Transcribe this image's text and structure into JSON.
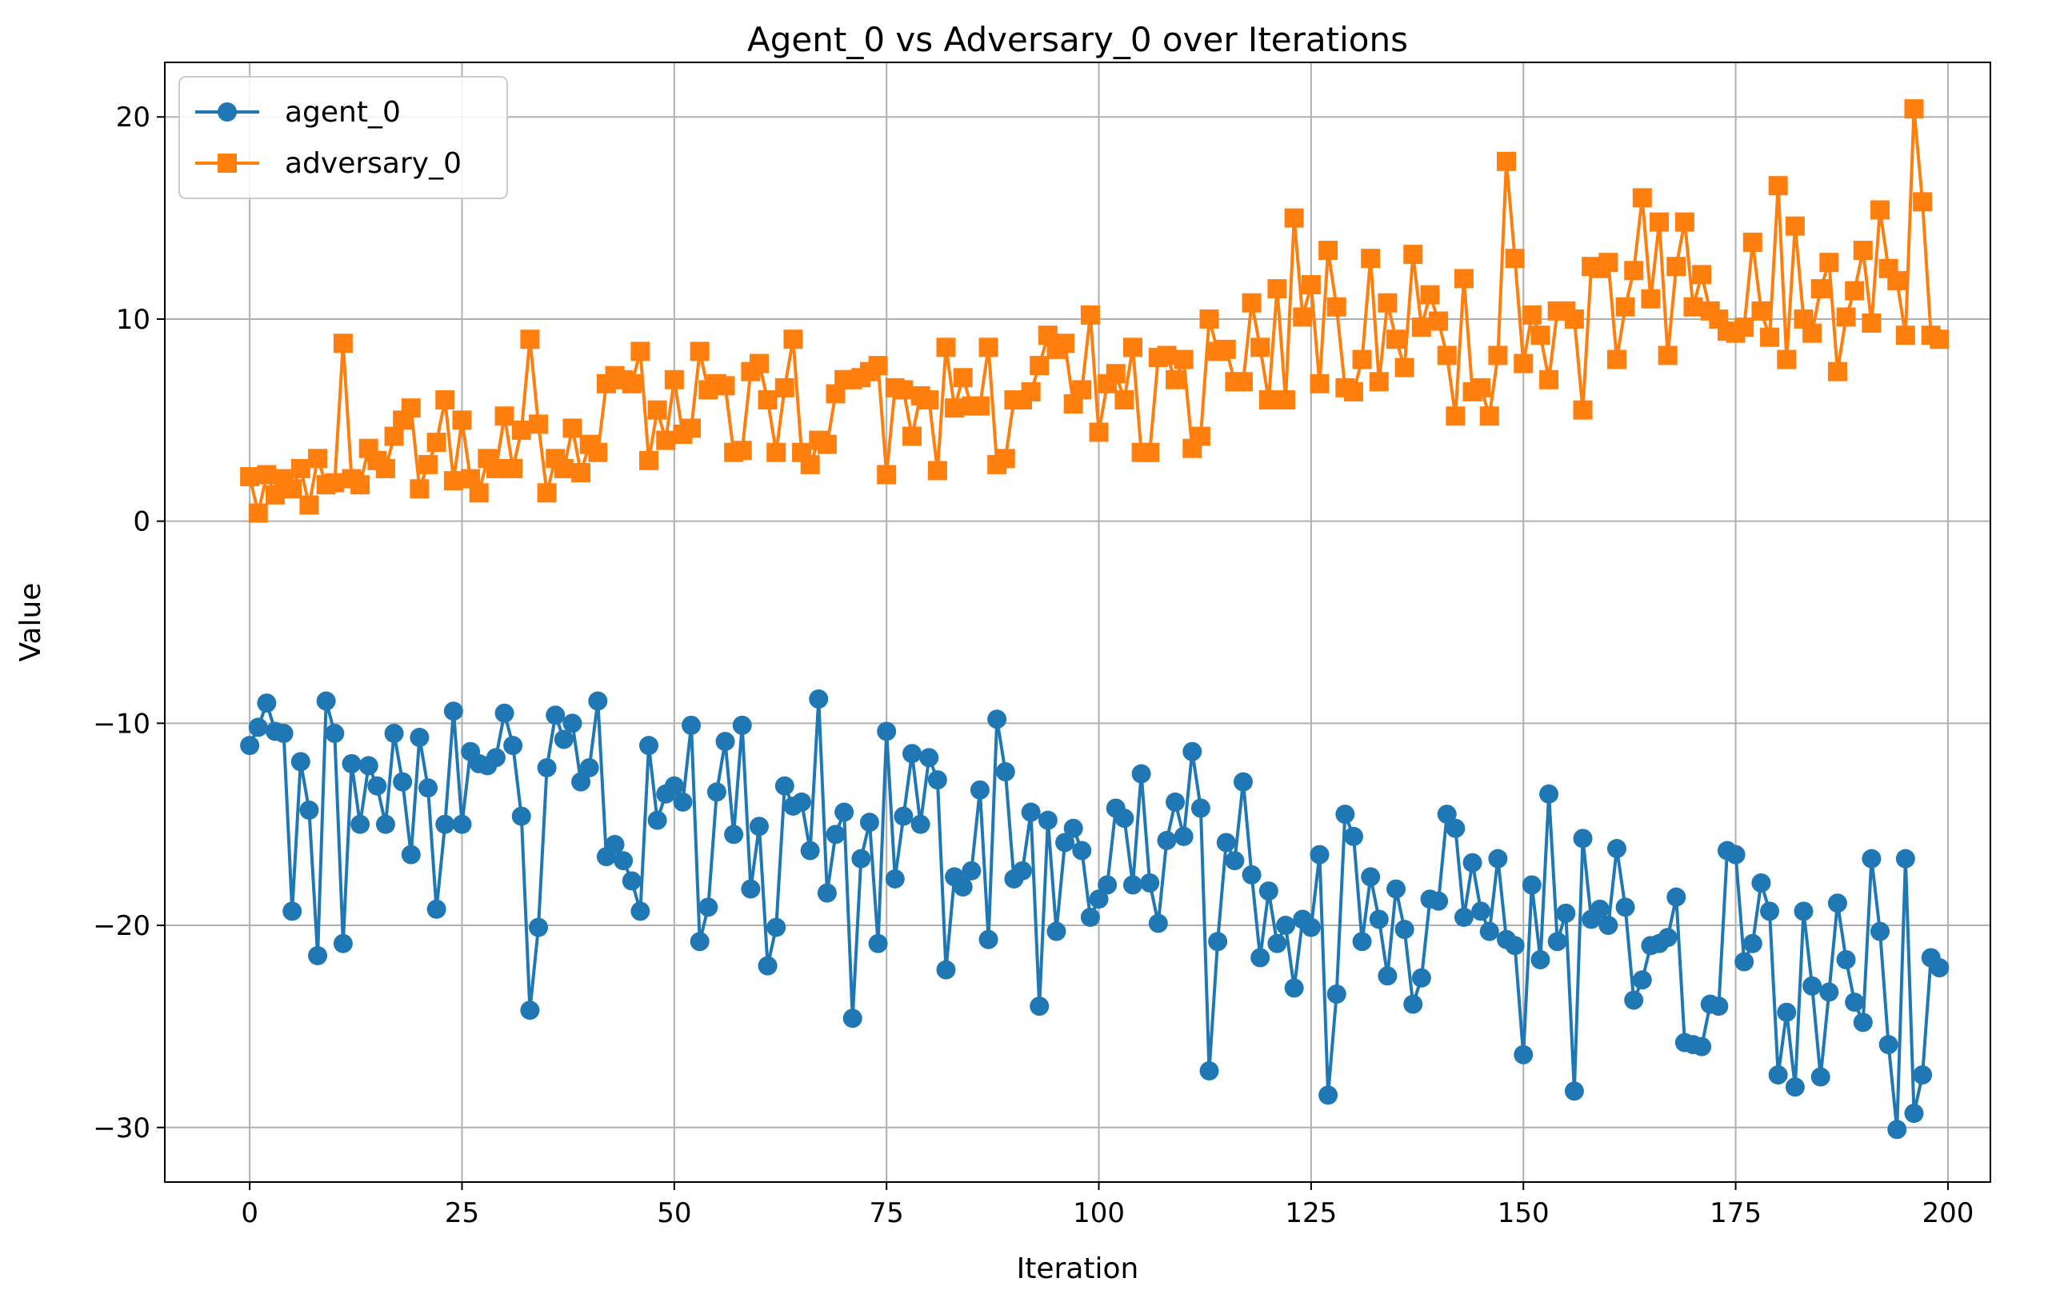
{
  "chart_data": {
    "type": "line",
    "title": "Agent_0 vs Adversary_0 over Iterations",
    "xlabel": "Iteration",
    "ylabel": "Value",
    "xlim": [
      -10,
      205
    ],
    "ylim": [
      -32.7,
      22.7
    ],
    "xticks": [
      0,
      25,
      50,
      75,
      100,
      125,
      150,
      175,
      200
    ],
    "xtick_labels": [
      "0",
      "25",
      "50",
      "75",
      "100",
      "125",
      "150",
      "175",
      "200"
    ],
    "yticks": [
      -30,
      -20,
      -10,
      0,
      10,
      20
    ],
    "ytick_labels": [
      "−30",
      "−20",
      "−10",
      "0",
      "10",
      "20"
    ],
    "grid": true,
    "legend_position": "top-left",
    "series": [
      {
        "name": "agent_0",
        "color": "#1f77b4",
        "marker": "circle",
        "x": [
          0,
          1,
          2,
          3,
          4,
          5,
          6,
          7,
          8,
          9,
          10,
          11,
          12,
          13,
          14,
          15,
          16,
          17,
          18,
          19,
          20,
          21,
          22,
          23,
          24,
          25,
          26,
          27,
          28,
          29,
          30,
          31,
          32,
          33,
          34,
          35,
          36,
          37,
          38,
          39,
          40,
          41,
          42,
          43,
          44,
          45,
          46,
          47,
          48,
          49,
          50,
          51,
          52,
          53,
          54,
          55,
          56,
          57,
          58,
          59,
          60,
          61,
          62,
          63,
          64,
          65,
          66,
          67,
          68,
          69,
          70,
          71,
          72,
          73,
          74,
          75,
          76,
          77,
          78,
          79,
          80,
          81,
          82,
          83,
          84,
          85,
          86,
          87,
          88,
          89,
          90,
          91,
          92,
          93,
          94,
          95,
          96,
          97,
          98,
          99,
          100,
          101,
          102,
          103,
          104,
          105,
          106,
          107,
          108,
          109,
          110,
          111,
          112,
          113,
          114,
          115,
          116,
          117,
          118,
          119,
          120,
          121,
          122,
          123,
          124,
          125,
          126,
          127,
          128,
          129,
          130,
          131,
          132,
          133,
          134,
          135,
          136,
          137,
          138,
          139,
          140,
          141,
          142,
          143,
          144,
          145,
          146,
          147,
          148,
          149,
          150,
          151,
          152,
          153,
          154,
          155,
          156,
          157,
          158,
          159,
          160,
          161,
          162,
          163,
          164,
          165,
          166,
          167,
          168,
          169,
          170,
          171,
          172,
          173,
          174,
          175,
          176,
          177,
          178,
          179,
          180,
          181,
          182,
          183,
          184,
          185,
          186,
          187,
          188,
          189,
          190,
          191,
          192,
          193,
          194,
          195,
          196,
          197,
          198,
          199
        ],
        "values": [
          -11.1,
          -10.2,
          -9.0,
          -10.4,
          -10.5,
          -19.3,
          -11.9,
          -14.3,
          -21.5,
          -8.9,
          -10.5,
          -20.9,
          -12.0,
          -15.0,
          -12.1,
          -13.1,
          -15.0,
          -10.5,
          -12.9,
          -16.5,
          -10.7,
          -13.2,
          -19.2,
          -15.0,
          -9.4,
          -15.0,
          -11.4,
          -12.0,
          -12.1,
          -11.7,
          -9.5,
          -11.1,
          -14.6,
          -24.2,
          -20.1,
          -12.2,
          -9.6,
          -10.8,
          -10.0,
          -12.9,
          -12.2,
          -8.9,
          -16.6,
          -16.0,
          -16.8,
          -17.8,
          -19.3,
          -11.1,
          -14.8,
          -13.5,
          -13.1,
          -13.9,
          -10.1,
          -20.8,
          -19.1,
          -13.4,
          -10.9,
          -15.5,
          -10.1,
          -18.2,
          -15.1,
          -22.0,
          -20.1,
          -13.1,
          -14.1,
          -13.9,
          -16.3,
          -8.8,
          -18.4,
          -15.5,
          -14.4,
          -24.6,
          -16.7,
          -14.9,
          -20.9,
          -10.4,
          -17.7,
          -14.6,
          -11.5,
          -15.0,
          -11.7,
          -12.8,
          -22.2,
          -17.6,
          -18.1,
          -17.3,
          -13.3,
          -20.7,
          -9.8,
          -12.4,
          -17.7,
          -17.3,
          -14.4,
          -24.0,
          -14.8,
          -20.3,
          -15.9,
          -15.2,
          -16.3,
          -19.6,
          -18.7,
          -18.0,
          -14.2,
          -14.7,
          -18.0,
          -12.5,
          -17.9,
          -19.9,
          -15.8,
          -13.9,
          -15.6,
          -11.4,
          -14.2,
          -27.2,
          -20.8,
          -15.9,
          -16.8,
          -12.9,
          -17.5,
          -21.6,
          -18.3,
          -20.9,
          -20.0,
          -23.1,
          -19.7,
          -20.1,
          -16.5,
          -28.4,
          -23.4,
          -14.5,
          -15.6,
          -20.8,
          -17.6,
          -19.7,
          -22.5,
          -18.2,
          -20.2,
          -23.9,
          -22.6,
          -18.7,
          -18.8,
          -14.5,
          -15.2,
          -19.6,
          -16.9,
          -19.3,
          -20.3,
          -16.7,
          -20.7,
          -21.0,
          -26.4,
          -18.0,
          -21.7,
          -13.5,
          -20.8,
          -19.4,
          -28.2,
          -15.7,
          -19.7,
          -19.2,
          -20.0,
          -16.2,
          -19.1,
          -23.7,
          -22.7,
          -21.0,
          -20.9,
          -20.6,
          -18.6,
          -25.8,
          -25.9,
          -26.0,
          -23.9,
          -24.0,
          -16.3,
          -16.5,
          -21.8,
          -20.9,
          -17.9,
          -19.3,
          -27.4,
          -24.3,
          -28.0,
          -19.3,
          -23.0,
          -27.5,
          -23.3,
          -18.9,
          -21.7,
          -23.8,
          -24.8,
          -16.7,
          -20.3,
          -25.9,
          -30.1,
          -16.7,
          -29.3,
          -27.4,
          -21.6,
          -22.1
        ]
      },
      {
        "name": "adversary_0",
        "color": "#ff7f0e",
        "marker": "square",
        "x": [
          0,
          1,
          2,
          3,
          4,
          5,
          6,
          7,
          8,
          9,
          10,
          11,
          12,
          13,
          14,
          15,
          16,
          17,
          18,
          19,
          20,
          21,
          22,
          23,
          24,
          25,
          26,
          27,
          28,
          29,
          30,
          31,
          32,
          33,
          34,
          35,
          36,
          37,
          38,
          39,
          40,
          41,
          42,
          43,
          44,
          45,
          46,
          47,
          48,
          49,
          50,
          51,
          52,
          53,
          54,
          55,
          56,
          57,
          58,
          59,
          60,
          61,
          62,
          63,
          64,
          65,
          66,
          67,
          68,
          69,
          70,
          71,
          72,
          73,
          74,
          75,
          76,
          77,
          78,
          79,
          80,
          81,
          82,
          83,
          84,
          85,
          86,
          87,
          88,
          89,
          90,
          91,
          92,
          93,
          94,
          95,
          96,
          97,
          98,
          99,
          100,
          101,
          102,
          103,
          104,
          105,
          106,
          107,
          108,
          109,
          110,
          111,
          112,
          113,
          114,
          115,
          116,
          117,
          118,
          119,
          120,
          121,
          122,
          123,
          124,
          125,
          126,
          127,
          128,
          129,
          130,
          131,
          132,
          133,
          134,
          135,
          136,
          137,
          138,
          139,
          140,
          141,
          142,
          143,
          144,
          145,
          146,
          147,
          148,
          149,
          150,
          151,
          152,
          153,
          154,
          155,
          156,
          157,
          158,
          159,
          160,
          161,
          162,
          163,
          164,
          165,
          166,
          167,
          168,
          169,
          170,
          171,
          172,
          173,
          174,
          175,
          176,
          177,
          178,
          179,
          180,
          181,
          182,
          183,
          184,
          185,
          186,
          187,
          188,
          189,
          190,
          191,
          192,
          193,
          194,
          195,
          196,
          197,
          198,
          199
        ],
        "values": [
          2.2,
          0.4,
          2.3,
          1.3,
          2.1,
          1.6,
          2.6,
          0.8,
          3.1,
          1.8,
          1.9,
          8.8,
          2.1,
          1.8,
          3.6,
          3.0,
          2.6,
          4.2,
          5.0,
          5.6,
          1.6,
          2.8,
          3.9,
          6.0,
          2.0,
          5.0,
          2.1,
          1.4,
          3.1,
          2.6,
          5.2,
          2.6,
          4.5,
          9.0,
          4.8,
          1.4,
          3.1,
          2.6,
          4.6,
          2.4,
          3.8,
          3.4,
          6.8,
          7.2,
          7.0,
          6.8,
          8.4,
          3.0,
          5.5,
          4.0,
          7.0,
          4.3,
          4.6,
          8.4,
          6.5,
          6.8,
          6.7,
          3.4,
          3.5,
          7.4,
          7.8,
          6.0,
          3.4,
          6.6,
          9.0,
          3.4,
          2.8,
          4.0,
          3.8,
          6.3,
          7.0,
          7.0,
          7.1,
          7.4,
          7.7,
          2.3,
          6.6,
          6.5,
          4.2,
          6.2,
          6.0,
          2.5,
          8.6,
          5.6,
          7.1,
          5.7,
          5.7,
          8.6,
          2.8,
          3.1,
          6.0,
          6.0,
          6.4,
          7.7,
          9.2,
          8.5,
          8.8,
          5.8,
          6.5,
          10.2,
          4.4,
          6.8,
          7.3,
          6.0,
          8.6,
          3.4,
          3.4,
          8.1,
          8.2,
          7.0,
          8.0,
          3.6,
          4.2,
          10.0,
          8.4,
          8.5,
          6.9,
          6.9,
          10.8,
          8.6,
          6.0,
          11.5,
          6.0,
          15.0,
          10.1,
          11.7,
          6.8,
          13.4,
          10.6,
          6.6,
          6.4,
          8.0,
          13.0,
          6.9,
          10.8,
          9.0,
          7.6,
          13.2,
          9.6,
          11.2,
          9.9,
          8.2,
          5.2,
          12.0,
          6.4,
          6.6,
          5.2,
          8.2,
          17.8,
          13.0,
          7.8,
          10.2,
          9.2,
          7.0,
          10.4,
          10.4,
          10.0,
          5.5,
          12.6,
          12.5,
          12.8,
          8.0,
          10.6,
          12.4,
          16.0,
          11.0,
          14.8,
          8.2,
          12.6,
          14.8,
          10.6,
          12.2,
          10.4,
          10.0,
          9.4,
          9.3,
          9.6,
          13.8,
          10.4,
          9.1,
          16.6,
          8.0,
          14.6,
          10.0,
          9.3,
          11.5,
          12.8,
          7.4,
          10.1,
          11.4,
          13.4,
          9.8,
          15.4,
          12.5,
          11.9,
          9.2,
          20.4,
          15.8,
          9.2,
          9.0
        ]
      }
    ]
  }
}
